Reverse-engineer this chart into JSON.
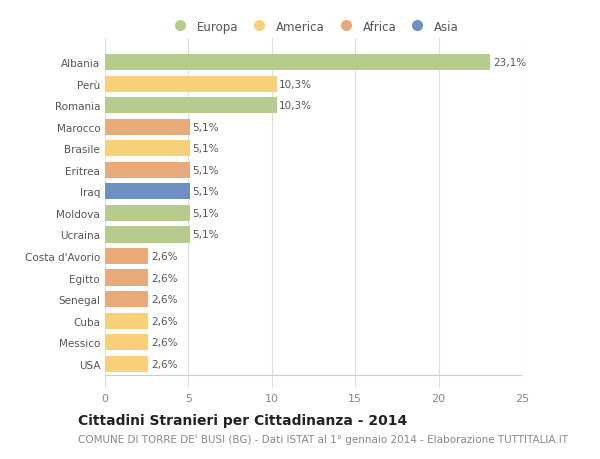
{
  "countries": [
    "Albania",
    "Perù",
    "Romania",
    "Marocco",
    "Brasile",
    "Eritrea",
    "Iraq",
    "Moldova",
    "Ucraina",
    "Costa d'Avorio",
    "Egitto",
    "Senegal",
    "Cuba",
    "Messico",
    "USA"
  ],
  "values": [
    23.1,
    10.3,
    10.3,
    5.1,
    5.1,
    5.1,
    5.1,
    5.1,
    5.1,
    2.6,
    2.6,
    2.6,
    2.6,
    2.6,
    2.6
  ],
  "labels": [
    "23,1%",
    "10,3%",
    "10,3%",
    "5,1%",
    "5,1%",
    "5,1%",
    "5,1%",
    "5,1%",
    "5,1%",
    "2,6%",
    "2,6%",
    "2,6%",
    "2,6%",
    "2,6%",
    "2,6%"
  ],
  "continents": [
    "Europa",
    "America",
    "Europa",
    "Africa",
    "America",
    "Africa",
    "Asia",
    "Europa",
    "Europa",
    "Africa",
    "Africa",
    "Africa",
    "America",
    "America",
    "America"
  ],
  "colors": {
    "Europa": "#b5cc8e",
    "America": "#f9d07a",
    "Africa": "#e8aa7a",
    "Asia": "#6d8fc2"
  },
  "legend_order": [
    "Europa",
    "America",
    "Africa",
    "Asia"
  ],
  "xlim": [
    0,
    25
  ],
  "xticks": [
    0,
    5,
    10,
    15,
    20,
    25
  ],
  "title": "Cittadini Stranieri per Cittadinanza - 2014",
  "subtitle": "COMUNE DI TORRE DE' BUSI (BG) - Dati ISTAT al 1° gennaio 2014 - Elaborazione TUTTITALIA.IT",
  "bg_color": "#ffffff",
  "bar_height": 0.75,
  "label_fontsize": 7.5,
  "title_fontsize": 10,
  "subtitle_fontsize": 7.5,
  "ytick_fontsize": 7.5,
  "xtick_fontsize": 8,
  "legend_fontsize": 8.5
}
